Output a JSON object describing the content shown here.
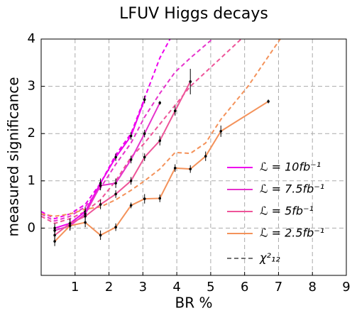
{
  "chart_data": {
    "type": "line",
    "title": "LFUV Higgs decays",
    "x_label": "BR %",
    "y_label": "measured significance",
    "xlim": [
      0,
      9
    ],
    "xticks": [
      1,
      2,
      3,
      4,
      5,
      6,
      7,
      8,
      9
    ],
    "ylim": [
      -1,
      4
    ],
    "yticks": [
      0,
      1,
      2,
      3,
      4
    ],
    "grid": true,
    "legend": "lower right",
    "series": [
      {
        "name": "ℒ = 10fb⁻¹",
        "color": "#ee00ee",
        "x": [
          0.4,
          0.85,
          1.3,
          1.75,
          2.2,
          2.65,
          3.05
        ],
        "values": [
          0.0,
          0.1,
          0.35,
          0.95,
          1.5,
          1.95,
          2.72
        ],
        "errors": [
          0.1,
          0.1,
          0.1,
          0.1,
          0.08,
          0.08,
          0.08
        ]
      },
      {
        "name": "ℒ = 7.5fb⁻¹",
        "color": "#e633cc",
        "x": [
          0.4,
          0.85,
          1.3,
          1.75,
          2.2,
          2.65,
          3.05,
          3.5
        ],
        "values": [
          -0.05,
          0.05,
          0.3,
          0.9,
          0.95,
          1.45,
          2.0,
          2.65
        ],
        "errors": [
          0.1,
          0.1,
          0.1,
          0.1,
          0.1,
          0.08,
          0.08,
          0.04
        ]
      },
      {
        "name": "ℒ = 5fb⁻¹",
        "color": "#ee5599",
        "x": [
          0.4,
          0.85,
          1.3,
          1.75,
          2.2,
          2.65,
          3.05,
          3.5,
          3.95,
          4.4
        ],
        "values": [
          -0.15,
          0.1,
          0.25,
          0.5,
          0.72,
          1.0,
          1.5,
          1.85,
          2.48,
          3.1
        ],
        "errors": [
          0.1,
          0.1,
          0.1,
          0.1,
          0.08,
          0.08,
          0.08,
          0.1,
          0.1,
          0.27
        ]
      },
      {
        "name": "ℒ = 2.5fb⁻¹",
        "color": "#f4925a",
        "x": [
          0.4,
          0.85,
          1.3,
          1.75,
          2.2,
          2.65,
          3.05,
          3.5,
          3.95,
          4.4,
          4.85,
          5.3,
          6.7
        ],
        "values": [
          -0.28,
          0.05,
          0.12,
          -0.15,
          0.02,
          0.48,
          0.62,
          0.63,
          1.27,
          1.25,
          1.52,
          2.05,
          2.68
        ],
        "errors": [
          0.1,
          0.1,
          0.1,
          0.1,
          0.08,
          0.06,
          0.1,
          0.08,
          0.08,
          0.08,
          0.1,
          0.12,
          0.04
        ]
      }
    ],
    "chi2": {
      "name": "χ²₁₂",
      "color": "#444444",
      "curves": [
        {
          "color": "#ee00ee",
          "x": [
            0,
            0.4,
            0.85,
            1.3,
            1.75,
            2.2,
            2.65,
            3.05,
            3.5,
            3.8
          ],
          "values": [
            0.35,
            0.2,
            0.3,
            0.5,
            0.95,
            1.55,
            2.0,
            2.75,
            3.6,
            4.0
          ]
        },
        {
          "color": "#e633cc",
          "x": [
            0,
            0.4,
            0.85,
            1.3,
            1.75,
            2.2,
            2.65,
            3.05,
            3.5,
            3.95,
            4.4,
            5.05
          ],
          "values": [
            0.3,
            0.15,
            0.25,
            0.45,
            0.85,
            1.35,
            1.8,
            2.35,
            2.85,
            3.3,
            3.6,
            4.0
          ]
        },
        {
          "color": "#ee5599",
          "x": [
            0,
            0.4,
            0.85,
            1.3,
            1.75,
            2.2,
            2.65,
            3.05,
            3.5,
            3.95,
            4.4,
            5.9
          ],
          "values": [
            0.25,
            0.1,
            0.2,
            0.35,
            0.6,
            1.0,
            1.5,
            1.8,
            2.2,
            2.6,
            3.0,
            4.0
          ]
        },
        {
          "color": "#f4925a",
          "x": [
            0,
            0.4,
            0.85,
            1.3,
            1.75,
            2.2,
            2.65,
            3.05,
            3.5,
            3.95,
            4.4,
            4.85,
            5.3,
            6.1,
            7.05
          ],
          "values": [
            0.3,
            0.25,
            0.3,
            0.4,
            0.45,
            0.6,
            0.8,
            1.0,
            1.25,
            1.6,
            1.58,
            1.8,
            2.3,
            3.0,
            4.0
          ]
        }
      ]
    }
  }
}
